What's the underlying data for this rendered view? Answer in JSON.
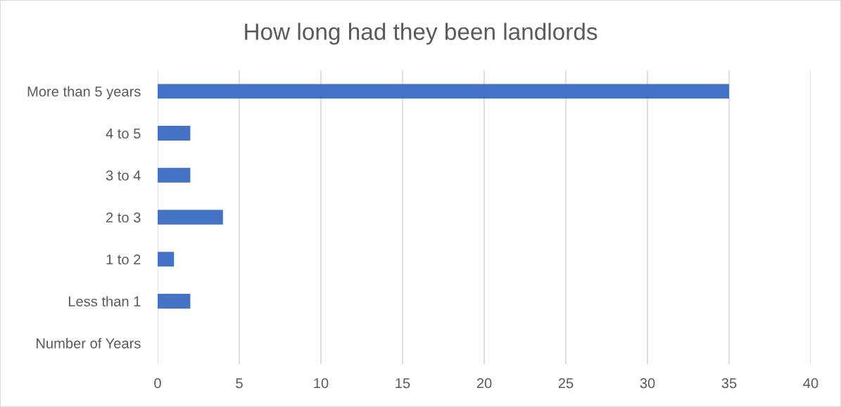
{
  "chart_data": {
    "type": "bar",
    "orientation": "horizontal",
    "title": "How long had they been landlords",
    "categories": [
      "More than 5 years",
      "4 to 5",
      "3 to 4",
      "2 to 3",
      "1 to 2",
      "Less than 1",
      "Number of Years"
    ],
    "values": [
      35,
      2,
      2,
      4,
      1,
      2,
      null
    ],
    "color": "#4472c4",
    "xlim": [
      0,
      40
    ],
    "xticks": [
      0,
      5,
      10,
      15,
      20,
      25,
      30,
      35,
      40
    ],
    "grid": "x",
    "legend": false
  }
}
